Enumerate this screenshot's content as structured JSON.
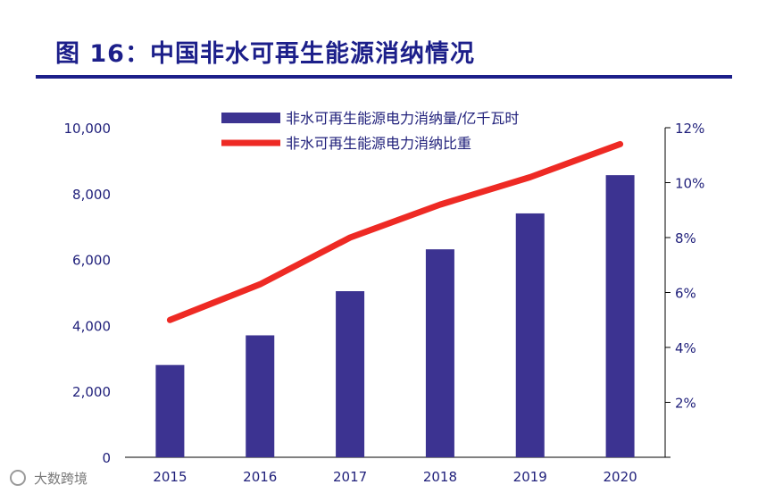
{
  "title": "图 16：中国非水可再生能源消纳情况",
  "watermark": "大数跨境",
  "colors": {
    "bar": "#3c3391",
    "line": "#ee2a24",
    "title": "#1c1f8a"
  },
  "chart_data": {
    "type": "bar",
    "categories": [
      "2015",
      "2016",
      "2017",
      "2018",
      "2019",
      "2020"
    ],
    "series": [
      {
        "name": "非水可再生能源电力消纳量/亿千瓦时",
        "type": "bar",
        "axis": "left",
        "values": [
          2800,
          3700,
          5040,
          6310,
          7400,
          8560
        ]
      },
      {
        "name": "非水可再生能源电力消纳比重",
        "type": "line",
        "axis": "right",
        "values": [
          5.0,
          6.3,
          8.0,
          9.2,
          10.2,
          11.4
        ]
      }
    ],
    "ylim": [
      0,
      10000
    ],
    "yticks": [
      "0",
      "2,000",
      "4,000",
      "6,000",
      "8,000",
      "10,000"
    ],
    "y2lim": [
      0,
      12
    ],
    "y2ticks": [
      "",
      "2%",
      "4%",
      "6%",
      "8%",
      "10%",
      "12%"
    ],
    "legend": "top"
  }
}
